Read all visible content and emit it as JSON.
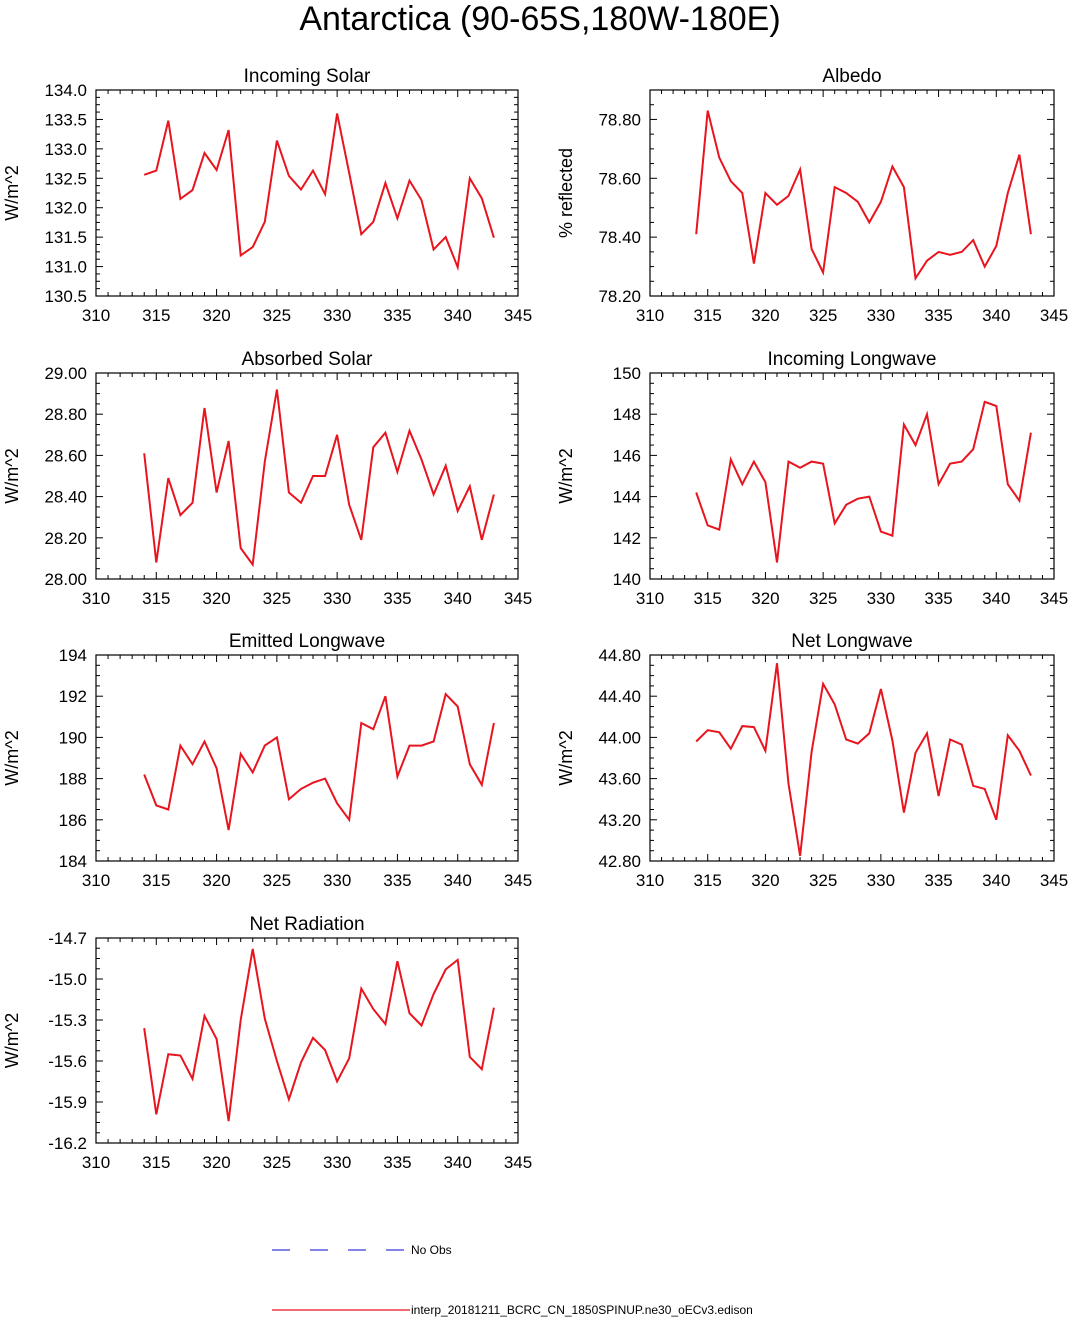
{
  "title": "Antarctica (90-65S,180W-180E)",
  "legend": {
    "obs_label": "No Obs",
    "model_label": "interp_20181211_BCRC_CN_1850SPINUP.ne30_oECv3.edison",
    "obs_color": "#3a3adb",
    "model_color": "#e8141e"
  },
  "chart_data": [
    {
      "type": "line",
      "title": "Incoming Solar",
      "ylabel": "W/m^2",
      "xlim": [
        310,
        345
      ],
      "xticks": [
        "310",
        "315",
        "320",
        "325",
        "330",
        "335",
        "340",
        "345"
      ],
      "ylim": [
        130.5,
        134.0
      ],
      "yticks": [
        "130.5",
        "131.0",
        "131.5",
        "132.0",
        "132.5",
        "133.0",
        "133.5",
        "134.0"
      ],
      "x": [
        314,
        315,
        316,
        317,
        318,
        319,
        320,
        321,
        322,
        323,
        324,
        325,
        326,
        327,
        328,
        329,
        330,
        331,
        332,
        333,
        334,
        335,
        336,
        337,
        338,
        339,
        340,
        341,
        342,
        343
      ],
      "values": [
        132.56,
        132.63,
        133.48,
        132.15,
        132.3,
        132.93,
        132.64,
        133.32,
        131.19,
        131.33,
        131.76,
        133.14,
        132.54,
        132.31,
        132.63,
        132.23,
        133.6,
        132.59,
        131.55,
        131.76,
        132.42,
        131.82,
        132.46,
        132.13,
        131.29,
        131.5,
        130.99,
        132.5,
        132.16,
        131.49
      ]
    },
    {
      "type": "line",
      "title": "Albedo",
      "ylabel": "% reflected",
      "xlim": [
        310,
        345
      ],
      "xticks": [
        "310",
        "315",
        "320",
        "325",
        "330",
        "335",
        "340",
        "345"
      ],
      "ylim": [
        78.2,
        78.9
      ],
      "yticks": [
        "78.20",
        "78.40",
        "78.60",
        "78.80"
      ],
      "ytick_values": [
        78.2,
        78.4,
        78.6,
        78.8
      ],
      "x": [
        314,
        315,
        316,
        317,
        318,
        319,
        320,
        321,
        322,
        323,
        324,
        325,
        326,
        327,
        328,
        329,
        330,
        331,
        332,
        333,
        334,
        335,
        336,
        337,
        338,
        339,
        340,
        341,
        342,
        343
      ],
      "values": [
        78.41,
        78.83,
        78.67,
        78.59,
        78.55,
        78.31,
        78.55,
        78.51,
        78.54,
        78.63,
        78.36,
        78.28,
        78.57,
        78.55,
        78.52,
        78.45,
        78.52,
        78.64,
        78.57,
        78.26,
        78.32,
        78.35,
        78.34,
        78.35,
        78.39,
        78.3,
        78.37,
        78.55,
        78.68,
        78.41
      ]
    },
    {
      "type": "line",
      "title": "Absorbed Solar",
      "ylabel": "W/m^2",
      "xlim": [
        310,
        345
      ],
      "xticks": [
        "310",
        "315",
        "320",
        "325",
        "330",
        "335",
        "340",
        "345"
      ],
      "ylim": [
        28.0,
        29.0
      ],
      "yticks": [
        "28.00",
        "28.20",
        "28.40",
        "28.60",
        "28.80",
        "29.00"
      ],
      "x": [
        314,
        315,
        316,
        317,
        318,
        319,
        320,
        321,
        322,
        323,
        324,
        325,
        326,
        327,
        328,
        329,
        330,
        331,
        332,
        333,
        334,
        335,
        336,
        337,
        338,
        339,
        340,
        341,
        342,
        343
      ],
      "values": [
        28.61,
        28.08,
        28.49,
        28.31,
        28.37,
        28.83,
        28.42,
        28.67,
        28.15,
        28.07,
        28.57,
        28.92,
        28.42,
        28.37,
        28.5,
        28.5,
        28.7,
        28.36,
        28.19,
        28.64,
        28.71,
        28.52,
        28.72,
        28.58,
        28.41,
        28.55,
        28.33,
        28.45,
        28.19,
        28.41
      ]
    },
    {
      "type": "line",
      "title": "Incoming Longwave",
      "ylabel": "W/m^2",
      "xlim": [
        310,
        345
      ],
      "xticks": [
        "310",
        "315",
        "320",
        "325",
        "330",
        "335",
        "340",
        "345"
      ],
      "ylim": [
        140,
        150
      ],
      "yticks": [
        "140",
        "142",
        "144",
        "146",
        "148",
        "150"
      ],
      "x": [
        314,
        315,
        316,
        317,
        318,
        319,
        320,
        321,
        322,
        323,
        324,
        325,
        326,
        327,
        328,
        329,
        330,
        331,
        332,
        333,
        334,
        335,
        336,
        337,
        338,
        339,
        340,
        341,
        342,
        343
      ],
      "values": [
        144.2,
        142.6,
        142.4,
        145.8,
        144.6,
        145.7,
        144.7,
        140.8,
        145.7,
        145.4,
        145.7,
        145.6,
        142.7,
        143.6,
        143.9,
        144.0,
        142.3,
        142.1,
        147.5,
        146.5,
        148.0,
        144.6,
        145.6,
        145.7,
        146.3,
        148.6,
        148.4,
        144.6,
        143.8,
        147.1
      ]
    },
    {
      "type": "line",
      "title": "Emitted Longwave",
      "ylabel": "W/m^2",
      "xlim": [
        310,
        345
      ],
      "xticks": [
        "310",
        "315",
        "320",
        "325",
        "330",
        "335",
        "340",
        "345"
      ],
      "ylim": [
        184,
        194
      ],
      "yticks": [
        "184",
        "186",
        "188",
        "190",
        "192",
        "194"
      ],
      "x": [
        314,
        315,
        316,
        317,
        318,
        319,
        320,
        321,
        322,
        323,
        324,
        325,
        326,
        327,
        328,
        329,
        330,
        331,
        332,
        333,
        334,
        335,
        336,
        337,
        338,
        339,
        340,
        341,
        342,
        343
      ],
      "values": [
        188.2,
        186.7,
        186.5,
        189.6,
        188.7,
        189.8,
        188.5,
        185.5,
        189.2,
        188.3,
        189.6,
        190.0,
        187.0,
        187.5,
        187.8,
        188.0,
        186.8,
        186.0,
        190.7,
        190.4,
        192.0,
        188.1,
        189.6,
        189.6,
        189.8,
        192.1,
        191.5,
        188.7,
        187.7,
        190.7
      ]
    },
    {
      "type": "line",
      "title": "Net Longwave",
      "ylabel": "W/m^2",
      "xlim": [
        310,
        345
      ],
      "xticks": [
        "310",
        "315",
        "320",
        "325",
        "330",
        "335",
        "340",
        "345"
      ],
      "ylim": [
        42.8,
        44.8
      ],
      "yticks": [
        "42.80",
        "43.20",
        "43.60",
        "44.00",
        "44.40",
        "44.80"
      ],
      "x": [
        314,
        315,
        316,
        317,
        318,
        319,
        320,
        321,
        322,
        323,
        324,
        325,
        326,
        327,
        328,
        329,
        330,
        331,
        332,
        333,
        334,
        335,
        336,
        337,
        338,
        339,
        340,
        341,
        342,
        343
      ],
      "values": [
        43.96,
        44.07,
        44.05,
        43.89,
        44.11,
        44.1,
        43.87,
        44.72,
        43.55,
        42.85,
        43.86,
        44.52,
        44.32,
        43.98,
        43.94,
        44.04,
        44.47,
        43.97,
        43.27,
        43.85,
        44.04,
        43.43,
        43.98,
        43.93,
        43.53,
        43.5,
        43.2,
        44.02,
        43.87,
        43.63
      ]
    },
    {
      "type": "line",
      "title": "Net Radiation",
      "ylabel": "W/m^2",
      "xlim": [
        310,
        345
      ],
      "xticks": [
        "310",
        "315",
        "320",
        "325",
        "330",
        "335",
        "340",
        "345"
      ],
      "ylim": [
        -16.2,
        -14.7
      ],
      "yticks": [
        "-16.2",
        "-15.9",
        "-15.6",
        "-15.3",
        "-15.0",
        "-14.7"
      ],
      "ytick_values": [
        -16.2,
        -15.9,
        -15.6,
        -15.3,
        -15.0,
        -14.7
      ],
      "x": [
        314,
        315,
        316,
        317,
        318,
        319,
        320,
        321,
        322,
        323,
        324,
        325,
        326,
        327,
        328,
        329,
        330,
        331,
        332,
        333,
        334,
        335,
        336,
        337,
        338,
        339,
        340,
        341,
        342,
        343
      ],
      "values": [
        -15.36,
        -15.99,
        -15.55,
        -15.56,
        -15.73,
        -15.27,
        -15.44,
        -16.04,
        -15.3,
        -14.78,
        -15.29,
        -15.6,
        -15.88,
        -15.61,
        -15.43,
        -15.52,
        -15.75,
        -15.58,
        -15.07,
        -15.22,
        -15.33,
        -14.87,
        -15.25,
        -15.34,
        -15.11,
        -14.93,
        -14.86,
        -15.57,
        -15.66,
        -15.21
      ]
    }
  ]
}
